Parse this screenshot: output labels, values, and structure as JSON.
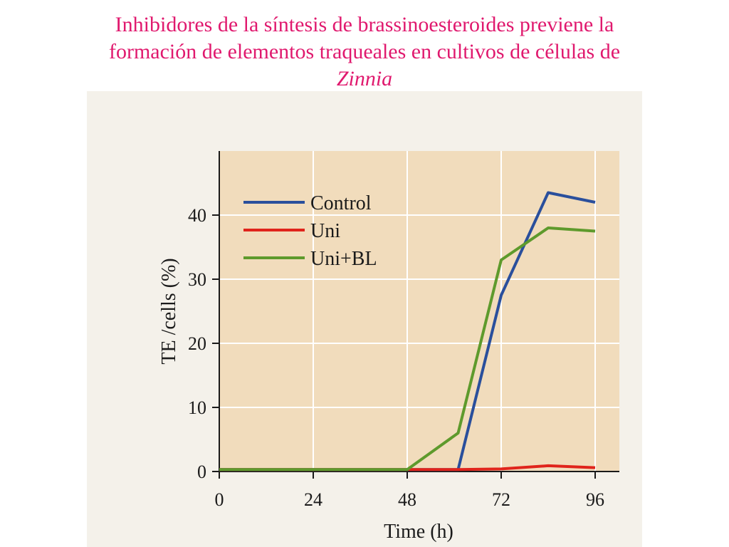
{
  "slide": {
    "title_line1": "Inhibidores de la síntesis de brassinoesteroides previene la",
    "title_line2": "formación de elementos traqueales en cultivos de células de",
    "title_line3": "Zinnia"
  },
  "colors": {
    "plot_background": "#f1dcbc",
    "grid": "#ffffff",
    "axis": "#1a1a1a",
    "control": "#2a4f9c",
    "uni": "#e0241b",
    "uni_bl": "#5e9a2c"
  },
  "chart_data": {
    "type": "line",
    "title": "",
    "xlabel": "Time (h)",
    "ylabel": "TE /cells (%)",
    "xlim": [
      0,
      102
    ],
    "ylim": [
      0,
      50
    ],
    "xticks": [
      "0",
      "24",
      "48",
      "72",
      "96"
    ],
    "yticks": [
      "0",
      "10",
      "20",
      "30",
      "40"
    ],
    "grid": true,
    "legend_position": "top-left",
    "series": [
      {
        "name": "Control",
        "color": "#2a4f9c",
        "x": [
          0,
          24,
          48,
          61,
          72,
          84,
          96
        ],
        "y": [
          0.3,
          0.3,
          0.3,
          0.3,
          27.5,
          43.5,
          42.0
        ]
      },
      {
        "name": "Uni",
        "color": "#e0241b",
        "x": [
          0,
          24,
          48,
          61,
          72,
          84,
          96
        ],
        "y": [
          0.3,
          0.3,
          0.3,
          0.3,
          0.4,
          0.9,
          0.6
        ]
      },
      {
        "name": "Uni+BL",
        "color": "#5e9a2c",
        "x": [
          0,
          24,
          48,
          61,
          72,
          84,
          96
        ],
        "y": [
          0.3,
          0.3,
          0.3,
          6.0,
          33.0,
          38.0,
          37.5
        ]
      }
    ]
  }
}
